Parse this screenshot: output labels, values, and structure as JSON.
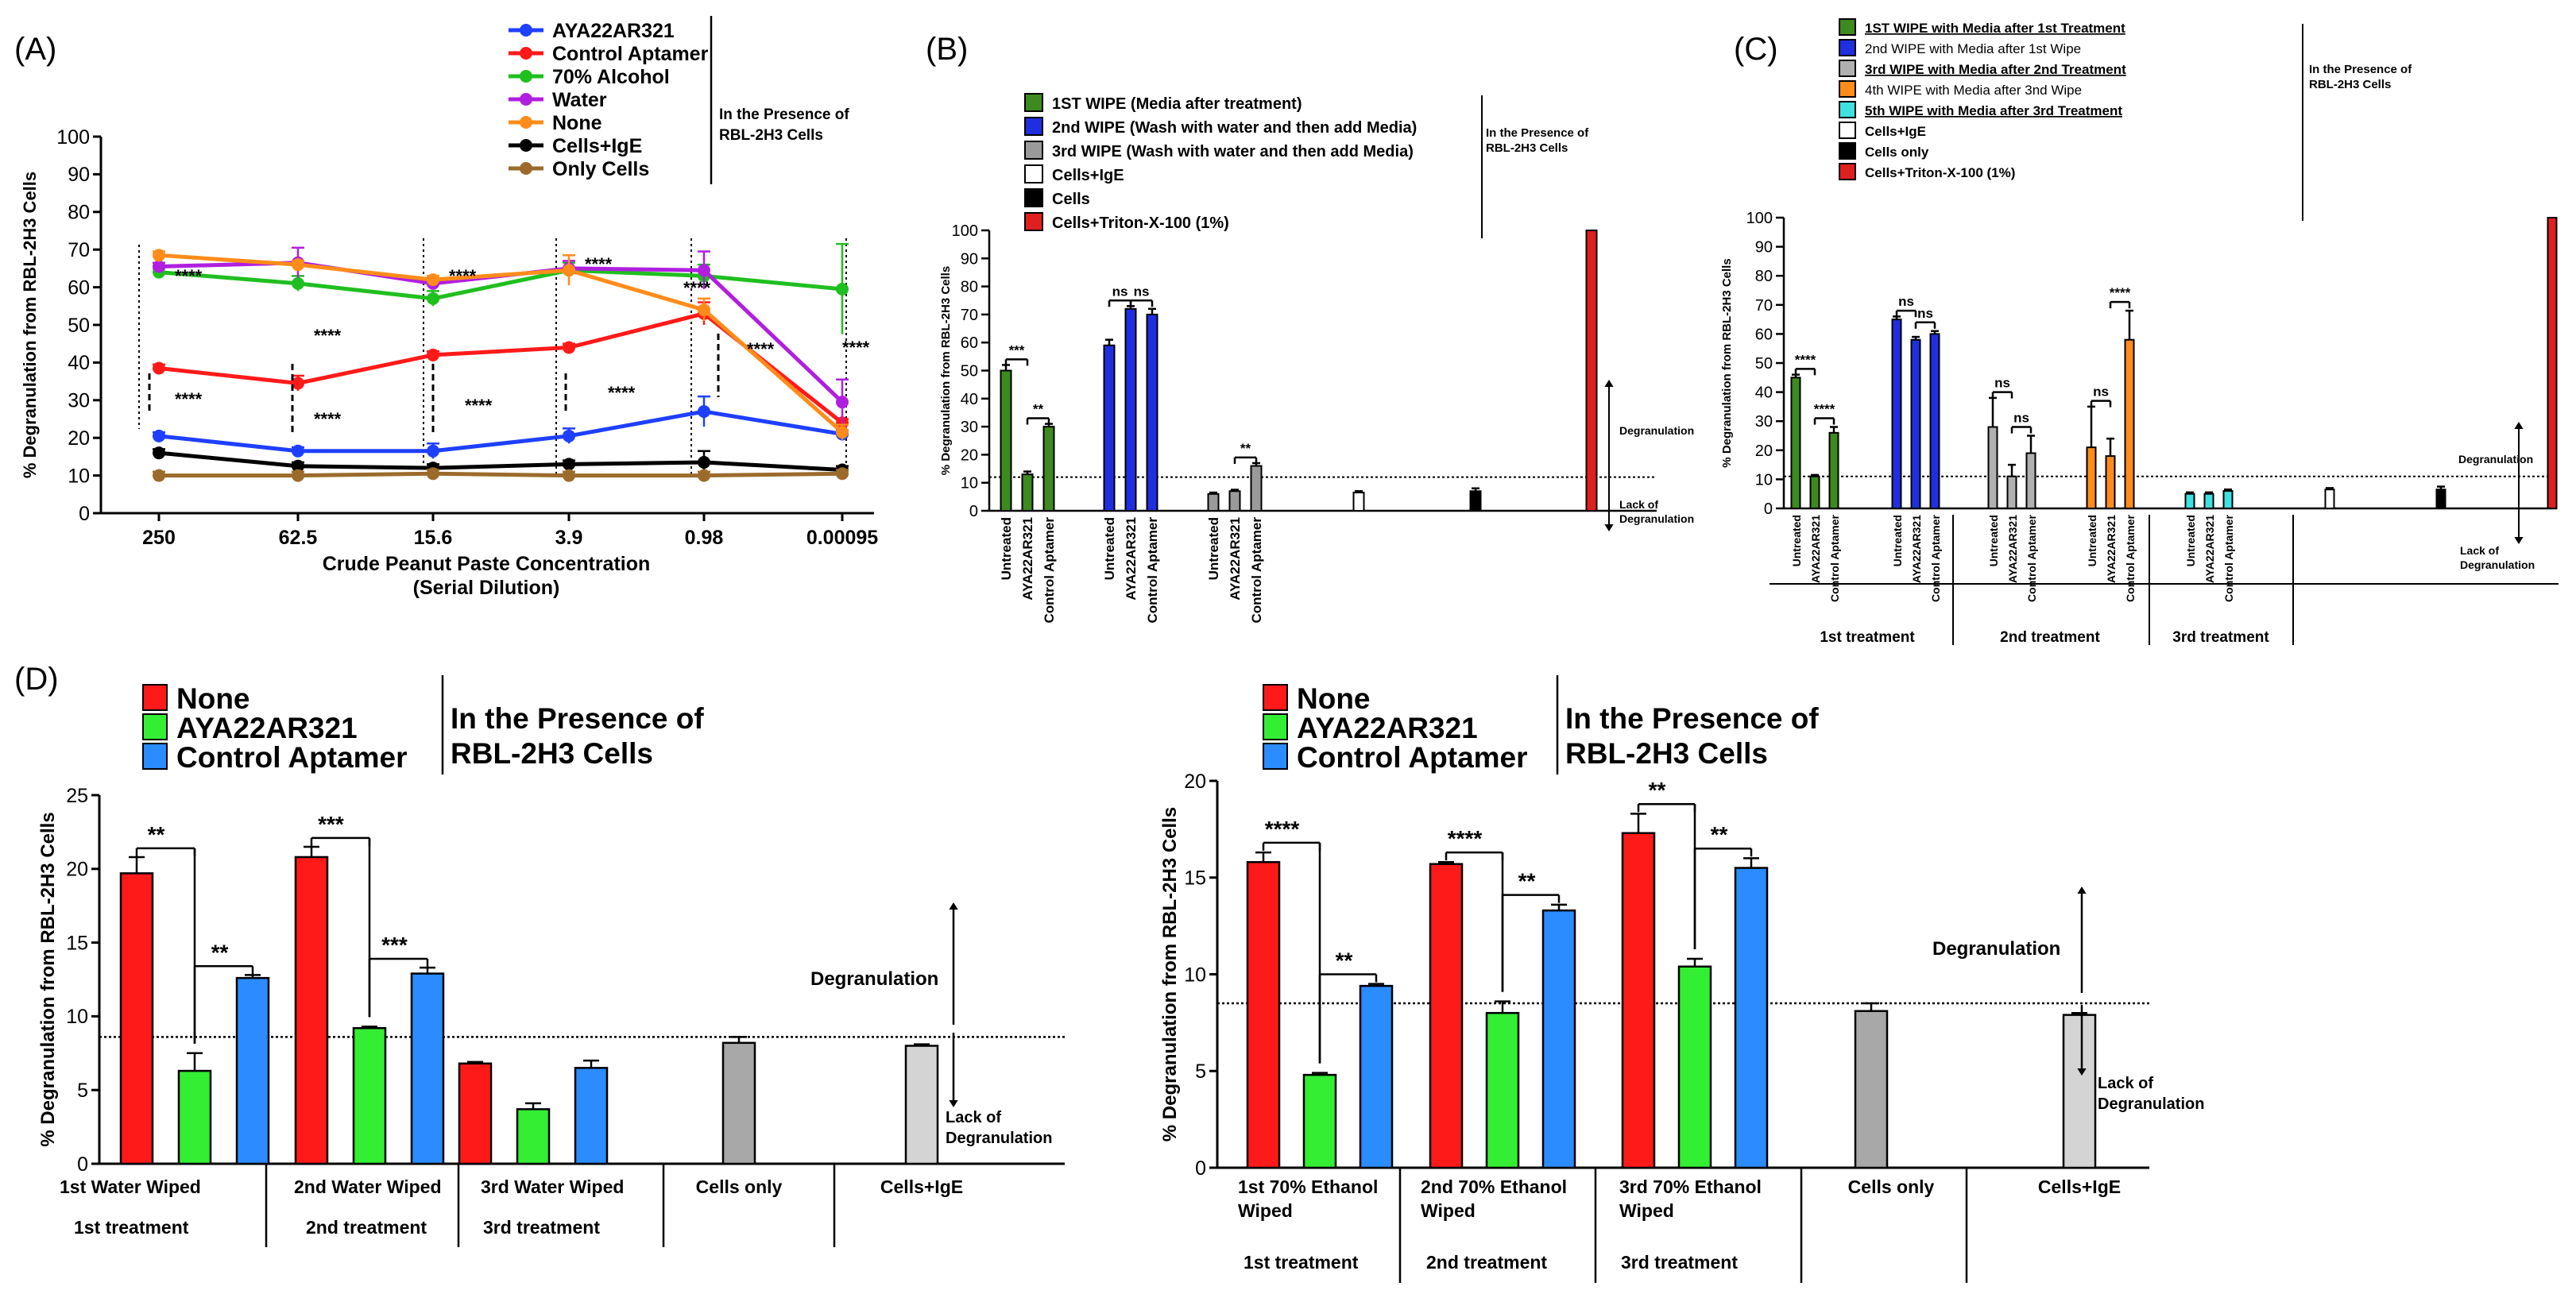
{
  "chart_data": [
    {
      "id": "A",
      "type": "line",
      "panel_label": "(A)",
      "ylabel": "% Degranulation from RBL-2H3 Cells",
      "xlabel": "Crude Peanut Paste Concentration",
      "xlabel2": "(Serial Dilution)",
      "ylim": [
        0,
        100
      ],
      "yticks": [
        0,
        10,
        20,
        30,
        40,
        50,
        60,
        70,
        80,
        90,
        100
      ],
      "categories": [
        "250",
        "62.5",
        "15.6",
        "3.9",
        "0.98",
        "0.00095"
      ],
      "legend_note": [
        "In the Presence of",
        "RBL-2H3 Cells"
      ],
      "series": [
        {
          "name": "AYA22AR321",
          "color": "#1f3fff",
          "values": [
            20.5,
            16.5,
            16.5,
            20.5,
            27,
            21
          ],
          "err": [
            1,
            1,
            2,
            2,
            4,
            1
          ]
        },
        {
          "name": "Control Aptamer",
          "color": "#ff1a1a",
          "values": [
            38.5,
            34.5,
            42,
            44,
            53,
            24
          ],
          "err": [
            1,
            2,
            1,
            1,
            3,
            1
          ]
        },
        {
          "name": "70% Alcohol",
          "color": "#1fbf1f",
          "values": [
            64,
            61,
            57,
            64.5,
            63,
            59.5
          ],
          "err": [
            1,
            2,
            2,
            2,
            3,
            12
          ]
        },
        {
          "name": "Water",
          "color": "#b01fe0",
          "values": [
            65.5,
            66.5,
            61,
            65,
            64.5,
            29.5
          ],
          "err": [
            1,
            4,
            1,
            2,
            5,
            6
          ]
        },
        {
          "name": "None",
          "color": "#ff8c1a",
          "values": [
            68.5,
            66,
            62,
            64.5,
            54,
            21.5
          ],
          "err": [
            1,
            1,
            1,
            4,
            3,
            2
          ]
        },
        {
          "name": "Cells+IgE",
          "color": "#000000",
          "values": [
            16,
            12.5,
            12,
            13,
            13.5,
            11.5
          ],
          "err": [
            1,
            1,
            1,
            1,
            3,
            1
          ]
        },
        {
          "name": "Only Cells",
          "color": "#9c6b2b",
          "values": [
            10,
            10,
            10.5,
            10,
            10,
            10.5
          ],
          "err": [
            1,
            1,
            1,
            1,
            1,
            1
          ]
        }
      ],
      "annotations": [
        "****",
        "****",
        "****",
        "****",
        "****",
        "****",
        "****",
        "****",
        "****",
        "****",
        "****",
        "****"
      ]
    },
    {
      "id": "B",
      "type": "bar",
      "panel_label": "(B)",
      "ylabel": "% Degranulation from RBL-2H3 Cells",
      "ylim": [
        0,
        100
      ],
      "yticks": [
        0,
        10,
        20,
        30,
        40,
        50,
        60,
        70,
        80,
        90,
        100
      ],
      "threshold": 12,
      "legend": [
        {
          "label": "1ST WIPE (Media after treatment)",
          "color": "#3d8a1f"
        },
        {
          "label": "2nd WIPE (Wash with water and then add Media)",
          "color": "#1f2fe0"
        },
        {
          "label": "3rd WIPE (Wash with water and then add Media)",
          "color": "#9a9a9a"
        },
        {
          "label": "Cells+IgE",
          "color": "#ffffff"
        },
        {
          "label": "Cells",
          "color": "#000000"
        },
        {
          "label": "Cells+Triton-X-100 (1%)",
          "color": "#e01f1f"
        }
      ],
      "legend_note": [
        "In the Presence of",
        "RBL-2H3 Cells"
      ],
      "groups": [
        {
          "labels": [
            "Untreated",
            "AYA22AR321",
            "Control Aptamer"
          ],
          "color": "#3d8a1f",
          "values": [
            50,
            13,
            30
          ],
          "err": [
            2,
            1,
            1
          ],
          "sig": [
            "***",
            "**"
          ]
        },
        {
          "labels": [
            "Untreated",
            "AYA22AR321",
            "Control Aptamer"
          ],
          "color": "#1f2fe0",
          "values": [
            59,
            72,
            70
          ],
          "err": [
            2,
            1,
            2
          ],
          "sig": [
            "ns",
            "ns"
          ]
        },
        {
          "labels": [
            "Untreated",
            "AYA22AR321",
            "Control Aptamer"
          ],
          "color": "#9a9a9a",
          "values": [
            6,
            7,
            16
          ],
          "err": [
            0.5,
            0.5,
            1
          ],
          "sig": [
            "",
            "**"
          ]
        },
        {
          "labels": [],
          "color": "#ffffff",
          "values": [
            6.5
          ],
          "err": [
            0.5
          ],
          "sig": []
        },
        {
          "labels": [],
          "color": "#000000",
          "values": [
            7
          ],
          "err": [
            1
          ],
          "sig": []
        },
        {
          "labels": [],
          "color": "#e01f1f",
          "values": [
            100
          ],
          "err": [
            0
          ],
          "sig": []
        }
      ],
      "arrow_up": "Degranulation",
      "arrow_down": [
        "Lack of",
        "Degranulation"
      ]
    },
    {
      "id": "C",
      "type": "bar",
      "panel_label": "(C)",
      "ylabel": "% Degranulation from RBL-2H3 Cells",
      "ylim": [
        0,
        100
      ],
      "yticks": [
        0,
        10,
        20,
        30,
        40,
        50,
        60,
        70,
        80,
        90,
        100
      ],
      "threshold": 11,
      "legend": [
        {
          "label": "1ST WIPE with Media after 1st Treatment",
          "color": "#3d8a1f",
          "style": "underline"
        },
        {
          "label": "2nd WIPE with Media after 1st Wipe",
          "color": "#1f2fe0",
          "style": "normal"
        },
        {
          "label": "3rd WIPE with Media after 2nd Treatment",
          "color": "#b0b0b0",
          "style": "underline"
        },
        {
          "label": "4th WIPE with Media after 3nd Wipe",
          "color": "#ff8c1a",
          "style": "normal"
        },
        {
          "label": "5th WIPE with Media after 3rd Treatment",
          "color": "#3fe0e0",
          "style": "underline"
        },
        {
          "label": "Cells+IgE",
          "color": "#ffffff",
          "style": "bold"
        },
        {
          "label": "Cells only",
          "color": "#000000",
          "style": "bold"
        },
        {
          "label": "Cells+Triton-X-100 (1%)",
          "color": "#e01f1f",
          "style": "bold"
        }
      ],
      "legend_note": [
        "In the Presence of",
        "RBL-2H3 Cells"
      ],
      "groups": [
        {
          "labels": [
            "Untreated",
            "AYA22AR321",
            "Control Aptamer"
          ],
          "color": "#3d8a1f",
          "values": [
            45,
            11,
            26
          ],
          "err": [
            1,
            0.5,
            2
          ],
          "sig": [
            "****",
            "****"
          ]
        },
        {
          "labels": [
            "Untreated",
            "AYA22AR321",
            "Control Aptamer"
          ],
          "color": "#1f2fe0",
          "values": [
            65,
            58,
            60
          ],
          "err": [
            1,
            1,
            1
          ],
          "sig": [
            "ns",
            "ns"
          ]
        },
        {
          "labels": [
            "Untreated",
            "AYA22AR321",
            "Control Aptamer"
          ],
          "color": "#b0b0b0",
          "values": [
            28,
            11,
            19
          ],
          "err": [
            10,
            4,
            6
          ],
          "sig": [
            "ns",
            "ns"
          ]
        },
        {
          "labels": [
            "Untreated",
            "AYA22AR321",
            "Control Aptamer"
          ],
          "color": "#ff8c1a",
          "values": [
            21,
            18,
            58
          ],
          "err": [
            14,
            6,
            10
          ],
          "sig": [
            "ns",
            "****"
          ]
        },
        {
          "labels": [
            "Untreated",
            "AYA22AR321",
            "Control Aptamer"
          ],
          "color": "#3fe0e0",
          "values": [
            5,
            5,
            6
          ],
          "err": [
            0.5,
            0.5,
            0.5
          ],
          "sig": [
            "",
            ""
          ]
        },
        {
          "labels": [],
          "color": "#ffffff",
          "values": [
            6.5
          ],
          "err": [
            0.5
          ],
          "sig": []
        },
        {
          "labels": [],
          "color": "#000000",
          "values": [
            6.5
          ],
          "err": [
            1
          ],
          "sig": []
        },
        {
          "labels": [],
          "color": "#e01f1f",
          "values": [
            100
          ],
          "err": [
            0
          ],
          "sig": []
        }
      ],
      "sections": [
        "1st treatment",
        "2nd treatment",
        "3rd treatment"
      ],
      "arrow_up": "Degranulation",
      "arrow_down": [
        "Lack of",
        "Degranulation"
      ]
    },
    {
      "id": "D1",
      "type": "bar",
      "panel_label": "(D)",
      "ylabel": "% Degranulation from RBL-2H3 Cells",
      "ylim": [
        0,
        25
      ],
      "yticks": [
        0,
        5,
        10,
        15,
        20,
        25
      ],
      "threshold": 8.6,
      "legend": [
        {
          "label": "None",
          "color": "#ff1a1a"
        },
        {
          "label": "AYA22AR321",
          "color": "#33ee33"
        },
        {
          "label": "Control Aptamer",
          "color": "#2a8cff"
        }
      ],
      "legend_note": [
        "In the Presence of",
        "RBL-2H3 Cells"
      ],
      "groups": [
        {
          "label": [
            "1st Water Wiped"
          ],
          "section": "1st treatment",
          "colors": [
            "#ff1a1a",
            "#33ee33",
            "#2a8cff"
          ],
          "values": [
            19.7,
            6.3,
            12.6
          ],
          "err": [
            1.1,
            1.2,
            0.2
          ],
          "sig": [
            "**",
            "**"
          ]
        },
        {
          "label": [
            "2nd Water Wiped"
          ],
          "section": "2nd treatment",
          "colors": [
            "#ff1a1a",
            "#33ee33",
            "#2a8cff"
          ],
          "values": [
            20.8,
            9.2,
            12.9
          ],
          "err": [
            0.7,
            0.1,
            0.4
          ],
          "sig": [
            "***",
            "***"
          ]
        },
        {
          "label": [
            "3rd Water Wiped"
          ],
          "section": "3rd treatment",
          "colors": [
            "#ff1a1a",
            "#33ee33",
            "#2a8cff"
          ],
          "values": [
            6.8,
            3.7,
            6.5
          ],
          "err": [
            0.1,
            0.4,
            0.5
          ],
          "sig": [
            "",
            ""
          ]
        },
        {
          "label": [
            "Cells only"
          ],
          "section": "",
          "colors": [
            "#a8a8a8"
          ],
          "values": [
            8.2
          ],
          "err": [
            0.4
          ],
          "sig": []
        },
        {
          "label": [
            "Cells+IgE"
          ],
          "section": "",
          "colors": [
            "#d4d4d4"
          ],
          "values": [
            8.0
          ],
          "err": [
            0.1
          ],
          "sig": []
        }
      ],
      "arrow_up": "Degranulation",
      "arrow_down": [
        "Lack of",
        "Degranulation"
      ]
    },
    {
      "id": "D2",
      "type": "bar",
      "panel_label": "",
      "ylabel": "% Degranulation from RBL-2H3 Cells",
      "ylim": [
        0,
        20
      ],
      "yticks": [
        0,
        5,
        10,
        15,
        20
      ],
      "threshold": 8.5,
      "legend": [
        {
          "label": "None",
          "color": "#ff1a1a"
        },
        {
          "label": "AYA22AR321",
          "color": "#33ee33"
        },
        {
          "label": "Control Aptamer",
          "color": "#2a8cff"
        }
      ],
      "legend_note": [
        "In the Presence of",
        "RBL-2H3 Cells"
      ],
      "groups": [
        {
          "label": [
            "1st 70% Ethanol",
            "Wiped"
          ],
          "section": "1st treatment",
          "colors": [
            "#ff1a1a",
            "#33ee33",
            "#2a8cff"
          ],
          "values": [
            15.8,
            4.8,
            9.4
          ],
          "err": [
            0.5,
            0.1,
            0.1
          ],
          "sig": [
            "****",
            "**"
          ]
        },
        {
          "label": [
            "2nd 70% Ethanol",
            "Wiped"
          ],
          "section": "2nd treatment",
          "colors": [
            "#ff1a1a",
            "#33ee33",
            "#2a8cff"
          ],
          "values": [
            15.7,
            8.0,
            13.3
          ],
          "err": [
            0.1,
            0.6,
            0.3
          ],
          "sig": [
            "****",
            "**"
          ]
        },
        {
          "label": [
            "3rd 70% Ethanol",
            "Wiped"
          ],
          "section": "3rd treatment",
          "colors": [
            "#ff1a1a",
            "#33ee33",
            "#2a8cff"
          ],
          "values": [
            17.3,
            10.4,
            15.5
          ],
          "err": [
            1.0,
            0.4,
            0.5
          ],
          "sig": [
            "**",
            "**"
          ]
        },
        {
          "label": [
            "Cells only"
          ],
          "section": "",
          "colors": [
            "#a8a8a8"
          ],
          "values": [
            8.1
          ],
          "err": [
            0.4
          ],
          "sig": []
        },
        {
          "label": [
            "Cells+IgE"
          ],
          "section": "",
          "colors": [
            "#d4d4d4"
          ],
          "values": [
            7.9
          ],
          "err": [
            0.1
          ],
          "sig": []
        }
      ],
      "arrow_up": "Degranulation",
      "arrow_down": [
        "Lack of",
        "Degranulation"
      ]
    }
  ]
}
